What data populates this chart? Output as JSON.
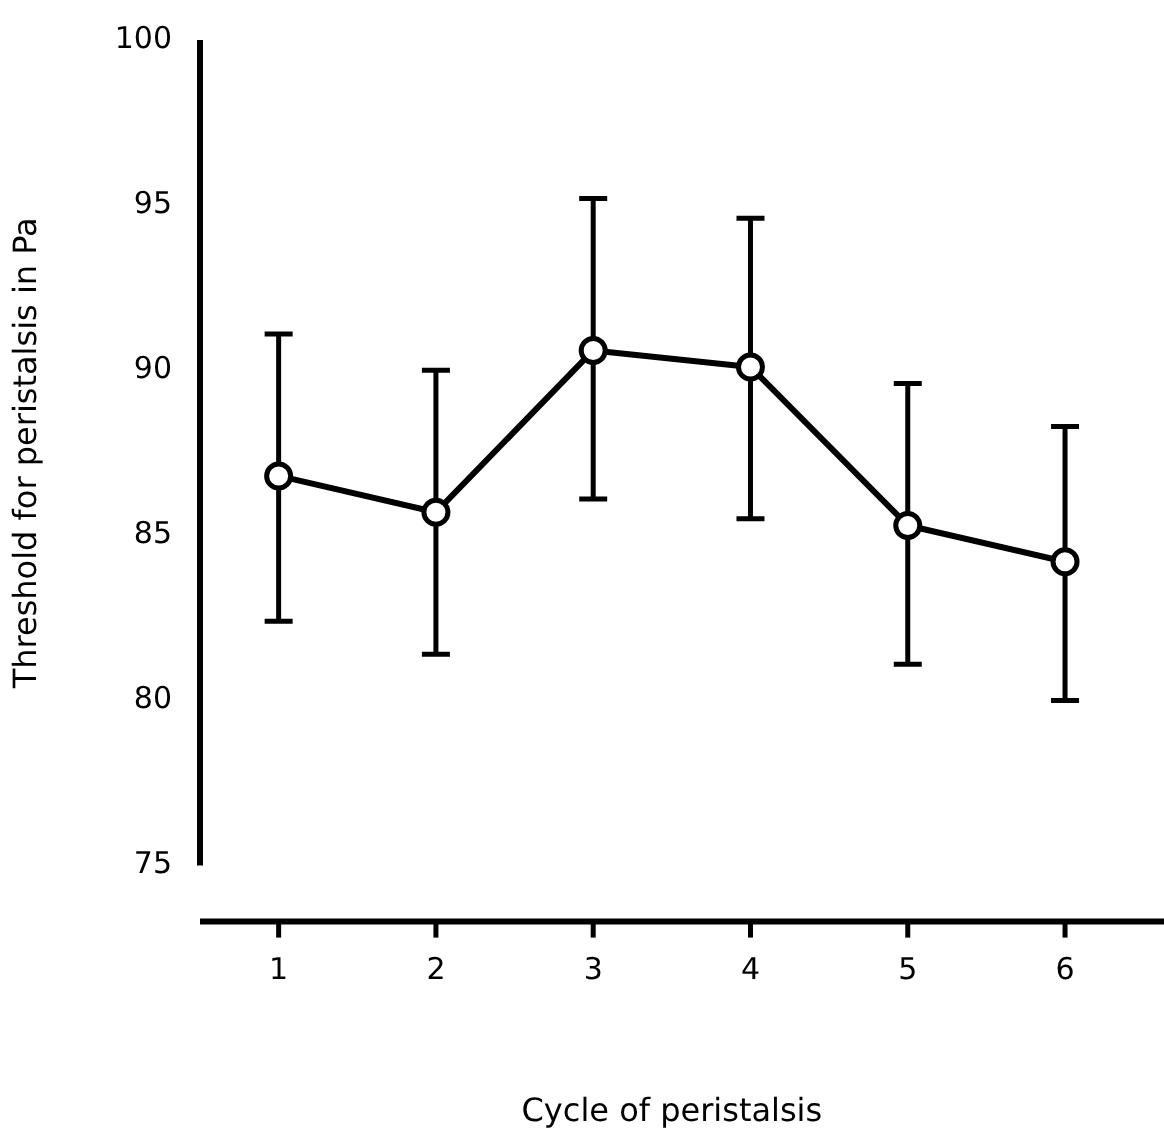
{
  "chart_data": {
    "type": "line",
    "xlabel": "Cycle of peristalsis",
    "ylabel": "Threshold for peristalsis in Pa",
    "categories": [
      "1",
      "2",
      "3",
      "4",
      "5",
      "6"
    ],
    "series": [
      {
        "color": "#000000",
        "values": [
          86.8,
          85.7,
          90.6,
          90.1,
          85.3,
          84.2
        ],
        "errors": [
          [
            82.4,
            91.1
          ],
          [
            81.4,
            90.0
          ],
          [
            86.1,
            95.2
          ],
          [
            85.5,
            94.6
          ],
          [
            81.1,
            89.6
          ],
          [
            80.0,
            88.3
          ]
        ]
      }
    ],
    "ylim": [
      75,
      100
    ],
    "yticks": [
      75,
      80,
      85,
      90,
      95,
      100
    ],
    "grid": false,
    "legend": false,
    "marker": "circle",
    "line_style": "solid"
  }
}
